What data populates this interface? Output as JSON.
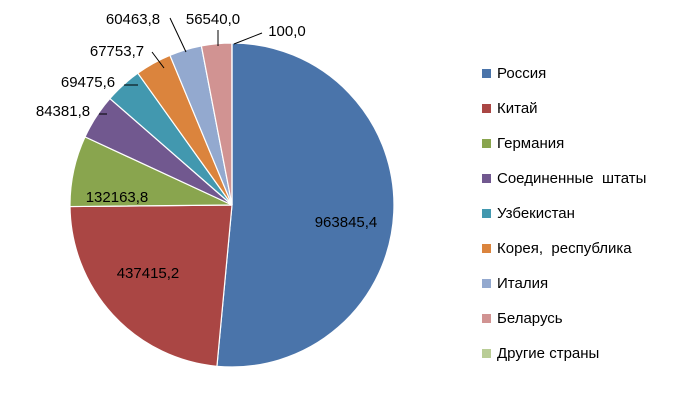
{
  "chart_data": {
    "type": "pie",
    "title": "",
    "legend_position": "right",
    "categories": [
      "Россия",
      "Китай",
      "Германия",
      "Соединенные  штаты",
      "Узбекистан",
      "Корея,  республика",
      "Италия",
      "Беларусь",
      "Другие страны"
    ],
    "values": [
      963845.4,
      437415.2,
      132163.8,
      84381.8,
      69475.6,
      67753.7,
      60463.8,
      56540.0,
      100.0
    ],
    "data_labels": [
      "963845,4",
      "437415,2",
      "132163,8",
      "84381,8",
      "69475,6",
      "67753,7",
      "60463,8",
      "56540,0",
      "100,0"
    ],
    "colors": [
      "#4A74AA",
      "#AA4644",
      "#89A54E",
      "#71588F",
      "#4298AF",
      "#DB843D",
      "#93A9CF",
      "#D19392",
      "#B9CD96"
    ]
  }
}
